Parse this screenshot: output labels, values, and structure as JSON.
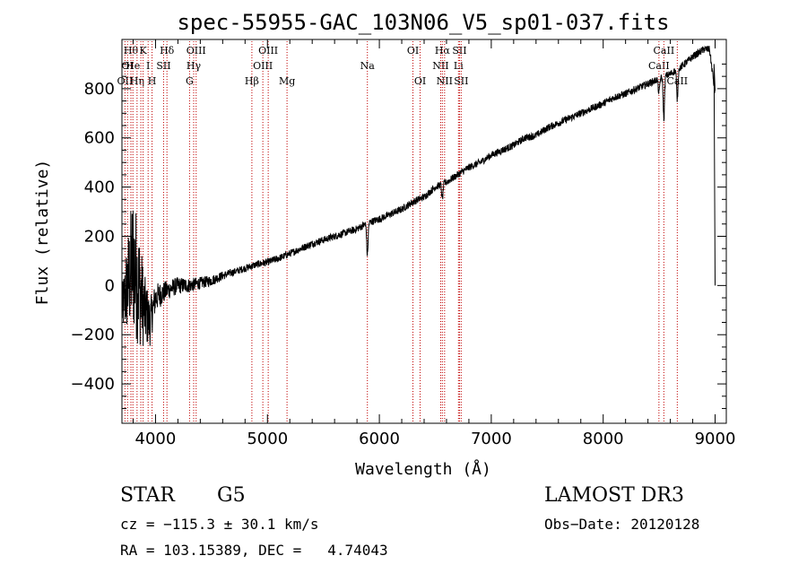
{
  "chart_data": {
    "type": "line",
    "title": "spec-55955-GAC_103N06_V5_sp01-037.fits",
    "xlabel": "Wavelength (Å)",
    "ylabel": "Flux (relative)",
    "xlim": [
      3700,
      9100
    ],
    "ylim": [
      -560,
      1000
    ],
    "xticks": [
      4000,
      5000,
      6000,
      7000,
      8000,
      9000
    ],
    "yticks": [
      -400,
      -200,
      0,
      200,
      400,
      600,
      800
    ],
    "spectrum": {
      "x": [
        3700,
        3750,
        3800,
        3850,
        3900,
        3950,
        4000,
        4100,
        4200,
        4300,
        4400,
        4500,
        4600,
        4700,
        4800,
        4900,
        5000,
        5100,
        5200,
        5300,
        5400,
        5500,
        5600,
        5700,
        5800,
        5900,
        6000,
        6100,
        6200,
        6300,
        6400,
        6500,
        6600,
        6700,
        6800,
        6900,
        7000,
        7100,
        7200,
        7300,
        7400,
        7500,
        7600,
        7700,
        7800,
        7900,
        8000,
        8100,
        8200,
        8300,
        8400,
        8500,
        8600,
        8700,
        8800,
        8900,
        8950,
        9000
      ],
      "y": [
        -100,
        0,
        100,
        0,
        -100,
        -150,
        -50,
        -20,
        0,
        0,
        10,
        20,
        40,
        55,
        70,
        85,
        95,
        110,
        130,
        150,
        170,
        185,
        200,
        215,
        230,
        255,
        270,
        290,
        310,
        340,
        360,
        400,
        420,
        450,
        480,
        500,
        530,
        550,
        570,
        600,
        610,
        640,
        660,
        680,
        700,
        720,
        740,
        765,
        780,
        800,
        820,
        840,
        860,
        890,
        930,
        960,
        960,
        780
      ],
      "noise": [
        90,
        200,
        300,
        250,
        150,
        100,
        60,
        40,
        35,
        30,
        25,
        22,
        18,
        15,
        15,
        15,
        15,
        15,
        15,
        15,
        15,
        15,
        15,
        15,
        15,
        15,
        15,
        15,
        15,
        15,
        15,
        15,
        15,
        15,
        15,
        15,
        15,
        15,
        15,
        15,
        15,
        15,
        15,
        15,
        15,
        15,
        15,
        15,
        15,
        15,
        15,
        15,
        15,
        15,
        15,
        15,
        15,
        20
      ],
      "absorption": [
        {
          "x": 5893,
          "depth": 130
        },
        {
          "x": 6563,
          "depth": 60
        },
        {
          "x": 8542,
          "depth": 170
        },
        {
          "x": 8662,
          "depth": 120
        },
        {
          "x": 8498,
          "depth": 60
        }
      ]
    },
    "lines": [
      {
        "x": 3727,
        "label": "OII",
        "row": 3
      },
      {
        "x": 3750,
        "label": "OI",
        "row": 2
      },
      {
        "x": 3780,
        "label": "Hθ",
        "row": 1
      },
      {
        "x": 3798,
        "label": "He",
        "row": 2
      },
      {
        "x": 3835,
        "label": "Hη",
        "row": 3
      },
      {
        "x": 3869,
        "label": "",
        "row": 0
      },
      {
        "x": 3889,
        "label": "K",
        "row": 1
      },
      {
        "x": 3934,
        "label": "I",
        "row": 2
      },
      {
        "x": 3969,
        "label": "H",
        "row": 3
      },
      {
        "x": 4072,
        "label": "SII",
        "row": 2
      },
      {
        "x": 4102,
        "label": "Hδ",
        "row": 1
      },
      {
        "x": 4304,
        "label": "G",
        "row": 3
      },
      {
        "x": 4341,
        "label": "Hγ",
        "row": 2
      },
      {
        "x": 4363,
        "label": "OIII",
        "row": 1
      },
      {
        "x": 4861,
        "label": "Hβ",
        "row": 3
      },
      {
        "x": 4959,
        "label": "OIII",
        "row": 2
      },
      {
        "x": 5007,
        "label": "OIII",
        "row": 1
      },
      {
        "x": 5175,
        "label": "Mg",
        "row": 3
      },
      {
        "x": 5893,
        "label": "Na",
        "row": 2
      },
      {
        "x": 6300,
        "label": "OI",
        "row": 1
      },
      {
        "x": 6364,
        "label": "OI",
        "row": 3
      },
      {
        "x": 6548,
        "label": "NII",
        "row": 2
      },
      {
        "x": 6563,
        "label": "Hα",
        "row": 1
      },
      {
        "x": 6583,
        "label": "NII",
        "row": 3
      },
      {
        "x": 6707,
        "label": "Li",
        "row": 2
      },
      {
        "x": 6716,
        "label": "SII",
        "row": 1
      },
      {
        "x": 6731,
        "label": "SII",
        "row": 3
      },
      {
        "x": 8498,
        "label": "CaII",
        "row": 2
      },
      {
        "x": 8542,
        "label": "CaII",
        "row": 1
      },
      {
        "x": 8662,
        "label": "CaII",
        "row": 3
      }
    ]
  },
  "info": {
    "object_type": "STAR",
    "subclass": "G5",
    "survey": "LAMOST DR3",
    "cz": "cz = −115.3 ± 30.1 km/s",
    "obs_date": "Obs−Date: 20120128",
    "coords": "RA = 103.15389, DEC =   4.74043"
  },
  "colors": {
    "spectrum": "#000000",
    "line_markers": "#c00000",
    "axes": "#000000"
  }
}
